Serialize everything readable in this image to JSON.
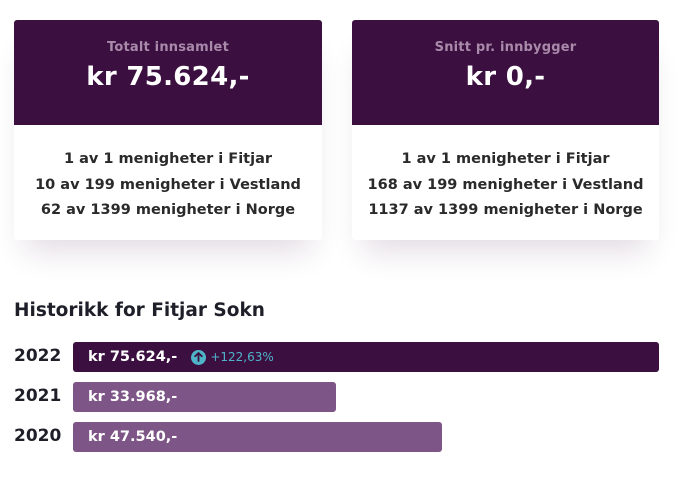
{
  "stats": {
    "total": {
      "label": "Totalt innsamlet",
      "value": "kr 75.624,-",
      "lines": [
        "1 av 1 menigheter i Fitjar",
        "10 av 199 menigheter i Vestland",
        "62 av 1399 menigheter i Norge"
      ]
    },
    "per_capita": {
      "label": "Snitt pr. innbygger",
      "value": "kr 0,-",
      "lines": [
        "1 av 1 menigheter i Fitjar",
        "168 av 199 menigheter i Vestland",
        "1137 av 1399 menigheter i Norge"
      ]
    }
  },
  "history": {
    "title": "Historikk for Fitjar Sokn",
    "rows": [
      {
        "year": "2022",
        "amount": "kr 75.624,-",
        "growth": "+122,63%",
        "fraction": 1.0
      },
      {
        "year": "2021",
        "amount": "kr 33.968,-",
        "fraction": 0.449
      },
      {
        "year": "2020",
        "amount": "kr 47.540,-",
        "fraction": 0.629
      }
    ]
  },
  "colors": {
    "primary": "#3b1040",
    "secondary": "#7d5586",
    "growth": "#4fb4c8",
    "label": "#a98aaa"
  },
  "icons": {
    "growth": "arrow-up-circle-icon"
  }
}
